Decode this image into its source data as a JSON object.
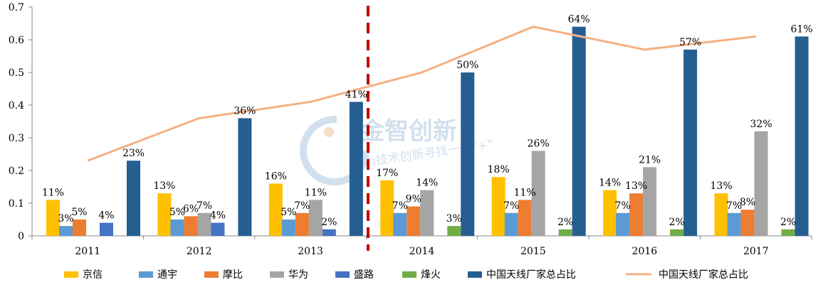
{
  "chart_data": {
    "type": "bar",
    "categories": [
      "2011",
      "2012",
      "2013",
      "2014",
      "2015",
      "2016",
      "2017"
    ],
    "ylim": [
      0,
      0.7
    ],
    "yticks": [
      "0",
      "0.1",
      "0.2",
      "0.3",
      "0.4",
      "0.5",
      "0.6",
      "0.7"
    ],
    "ytick_values": [
      0,
      0.1,
      0.2,
      0.3,
      0.4,
      0.5,
      0.6,
      0.7
    ],
    "divider_after_category": "2013",
    "series": [
      {
        "name": "京信",
        "color": "#FFC000",
        "values": [
          0.11,
          0.13,
          0.16,
          0.17,
          0.18,
          0.14,
          0.13
        ],
        "labels": [
          "11%",
          "13%",
          "16%",
          "17%",
          "18%",
          "14%",
          "13%"
        ]
      },
      {
        "name": "通宇",
        "color": "#5B9BD5",
        "values": [
          0.03,
          0.05,
          0.05,
          0.07,
          0.07,
          0.07,
          0.07
        ],
        "labels": [
          "3%",
          "5%",
          "5%",
          "7%",
          "7%",
          "7%",
          "7%"
        ]
      },
      {
        "name": "摩比",
        "color": "#ED7D31",
        "values": [
          0.05,
          0.06,
          0.07,
          0.09,
          0.11,
          0.13,
          0.08
        ],
        "labels": [
          "5%",
          "6%",
          "7%",
          "9%",
          "11%",
          "13%",
          "8%"
        ]
      },
      {
        "name": "华为",
        "color": "#A5A5A5",
        "values": [
          null,
          0.07,
          0.11,
          0.14,
          0.26,
          0.21,
          0.32
        ],
        "labels": [
          "",
          "7%",
          "11%",
          "14%",
          "26%",
          "21%",
          "32%"
        ]
      },
      {
        "name": "盛路",
        "color": "#4472C4",
        "values": [
          0.04,
          0.04,
          0.02,
          null,
          null,
          null,
          null
        ],
        "labels": [
          "4%",
          "4%",
          "2%",
          "",
          "",
          "",
          ""
        ]
      },
      {
        "name": "烽火",
        "color": "#70AD47",
        "values": [
          null,
          null,
          null,
          0.03,
          0.02,
          0.02,
          0.02
        ],
        "labels": [
          "",
          "",
          "",
          "3%",
          "2%",
          "2%",
          "2%"
        ]
      },
      {
        "name": "中国天线厂家总占比",
        "color": "#255E91",
        "values": [
          0.23,
          0.36,
          0.41,
          0.5,
          0.64,
          0.57,
          0.61
        ],
        "labels": [
          "23%",
          "36%",
          "41%",
          "50%",
          "64%",
          "57%",
          "61%"
        ]
      }
    ],
    "line_series": {
      "name": "中国天线厂家总占比",
      "color": "#F4B183",
      "values": [
        0.23,
        0.36,
        0.41,
        0.5,
        0.64,
        0.57,
        0.61
      ]
    },
    "legend_placement": "bottom",
    "grid": false
  },
  "watermark": {
    "title": "金智创新",
    "subtitle": "为技术创新寻找一个\"+\""
  }
}
